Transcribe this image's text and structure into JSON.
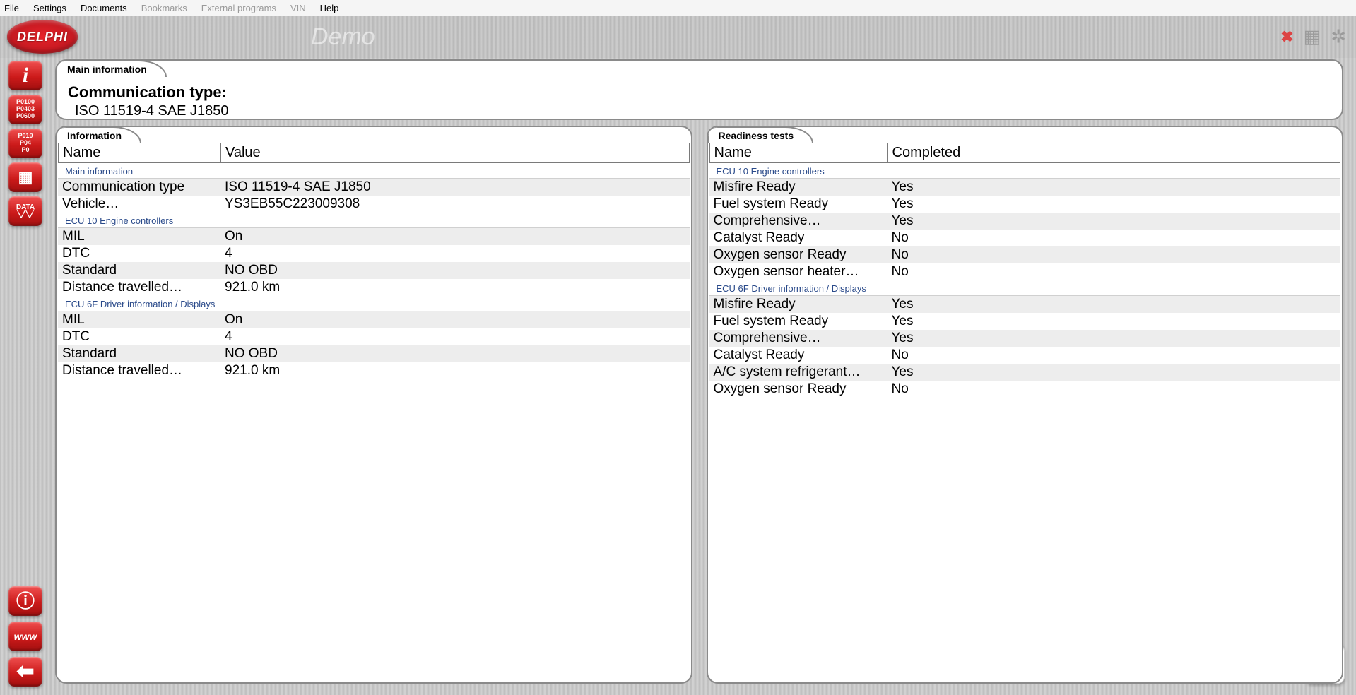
{
  "menu": {
    "items": [
      "File",
      "Settings",
      "Documents",
      "Bookmarks",
      "External programs",
      "VIN",
      "Help"
    ],
    "disabled": [
      3,
      4,
      5
    ]
  },
  "brand": {
    "logo_text": "DELPHI",
    "demo": "Demo"
  },
  "sidebar": {
    "info_label": "i",
    "codes1": "P0100\nP0403\nP0600",
    "codes2": "P010\nP04\nP0",
    "chip": "⌗",
    "data_label": "DATA",
    "data_icon": "╲╱╲╱",
    "bottom_info": "ⓘ",
    "www": "www",
    "back": "←",
    "corner": "⊞"
  },
  "main_panel": {
    "tab": "Main information",
    "title": "Communication type:",
    "value": "ISO 11519-4 SAE J1850"
  },
  "info_panel": {
    "tab": "Information",
    "cols": [
      "Name",
      "Value"
    ],
    "sections": [
      {
        "title": "Main information",
        "rows": [
          {
            "n": "Communication type",
            "v": "ISO 11519-4 SAE J1850"
          },
          {
            "n": "Vehicle…",
            "v": "YS3EB55C223009308"
          }
        ]
      },
      {
        "title": "ECU 10 Engine controllers",
        "rows": [
          {
            "n": "MIL",
            "v": "On"
          },
          {
            "n": "DTC",
            "v": "4"
          },
          {
            "n": "Standard",
            "v": "NO OBD"
          },
          {
            "n": "Distance travelled…",
            "v": "921.0 km"
          }
        ]
      },
      {
        "title": "ECU 6F Driver information / Displays",
        "rows": [
          {
            "n": "MIL",
            "v": "On"
          },
          {
            "n": "DTC",
            "v": "4"
          },
          {
            "n": "Standard",
            "v": "NO OBD"
          },
          {
            "n": "Distance travelled…",
            "v": "921.0 km"
          }
        ]
      }
    ]
  },
  "ready_panel": {
    "tab": "Readiness tests",
    "cols": [
      "Name",
      "Completed"
    ],
    "sections": [
      {
        "title": "ECU 10 Engine controllers",
        "rows": [
          {
            "n": "Misfire Ready",
            "v": "Yes"
          },
          {
            "n": "Fuel system  Ready",
            "v": "Yes"
          },
          {
            "n": "Comprehensive…",
            "v": "Yes"
          },
          {
            "n": "Catalyst  Ready",
            "v": "No"
          },
          {
            "n": "Oxygen sensor Ready",
            "v": "No"
          },
          {
            "n": "Oxygen sensor heater…",
            "v": "No"
          }
        ]
      },
      {
        "title": "ECU 6F Driver information / Displays",
        "rows": [
          {
            "n": "Misfire Ready",
            "v": "Yes"
          },
          {
            "n": "Fuel system  Ready",
            "v": "Yes"
          },
          {
            "n": "Comprehensive…",
            "v": "Yes"
          },
          {
            "n": "Catalyst  Ready",
            "v": "No"
          },
          {
            "n": "A/C system  refrigerant…",
            "v": "Yes"
          },
          {
            "n": "Oxygen sensor Ready",
            "v": "No"
          }
        ]
      }
    ]
  }
}
